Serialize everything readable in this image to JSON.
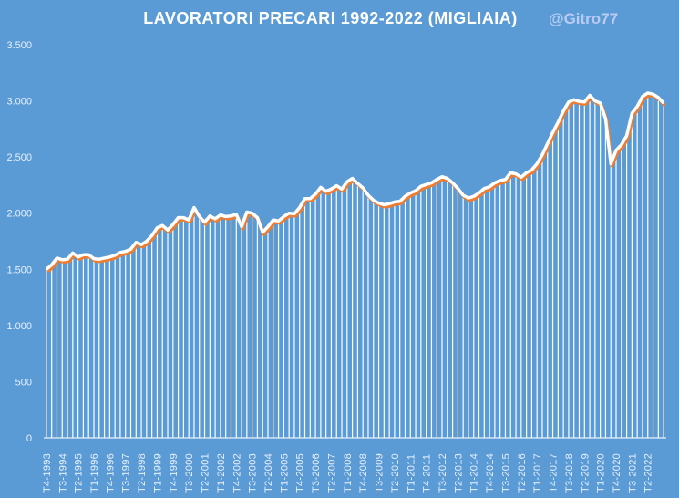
{
  "chart_data": {
    "type": "line",
    "title": "LAVORATORI  PRECARI 1992-2022  (MIGLIAIA)",
    "watermark": "@Gitro77",
    "xlabel": "",
    "ylabel": "",
    "ylim": [
      0,
      3500
    ],
    "y_ticks": [
      0,
      500,
      1000,
      1500,
      2000,
      2500,
      3000,
      3500
    ],
    "y_tick_labels": [
      "0",
      "500",
      "1.000",
      "1.500",
      "2.000",
      "2.500",
      "3.000",
      "3.500"
    ],
    "x_tick_every": 3,
    "x_tick_labels": [
      "T4-1993",
      "T3-1994",
      "T2-1995",
      "T1-1996",
      "T4-1996",
      "T3-1997",
      "T2-1998",
      "T1-1999",
      "T4-1999",
      "T3-2000",
      "T2-2001",
      "T1-2002",
      "T4-2002",
      "T3-2003",
      "T2-2004",
      "T1-2005",
      "T4-2005",
      "T3-2006",
      "T2-2007",
      "T1-2008",
      "T4-2008",
      "T3-2009",
      "T2-2010",
      "T1-2011",
      "T4-2011",
      "T3-2012",
      "T2-2013",
      "T1-2014",
      "T4-2014",
      "T3-2015",
      "T2-2016",
      "T1-2017",
      "T4-2017",
      "T3-2018",
      "T2-2019",
      "T1-2020",
      "T4-2020",
      "T3-2021",
      "T2-2022"
    ],
    "grid": false,
    "line_color": "#FFFFFF",
    "shadow_color": "#ED7D31",
    "background": "#5B9BD5",
    "series": [
      {
        "name": "Lavoratori precari",
        "values": [
          1500,
          1540,
          1600,
          1585,
          1590,
          1645,
          1610,
          1630,
          1630,
          1595,
          1590,
          1600,
          1610,
          1625,
          1650,
          1660,
          1680,
          1740,
          1720,
          1750,
          1800,
          1870,
          1890,
          1850,
          1900,
          1960,
          1960,
          1940,
          2050,
          1970,
          1920,
          1975,
          1950,
          1985,
          1970,
          1975,
          1990,
          1880,
          2010,
          2000,
          1960,
          1830,
          1880,
          1940,
          1930,
          1970,
          2000,
          1995,
          2050,
          2130,
          2130,
          2170,
          2230,
          2195,
          2215,
          2245,
          2215,
          2280,
          2310,
          2265,
          2225,
          2160,
          2115,
          2090,
          2075,
          2085,
          2100,
          2105,
          2150,
          2180,
          2200,
          2240,
          2255,
          2270,
          2300,
          2325,
          2310,
          2270,
          2220,
          2160,
          2135,
          2150,
          2180,
          2220,
          2235,
          2270,
          2290,
          2300,
          2360,
          2350,
          2320,
          2360,
          2385,
          2440,
          2520,
          2620,
          2720,
          2810,
          2910,
          2990,
          3010,
          2995,
          2990,
          3050,
          3000,
          2980,
          2840,
          2440,
          2560,
          2610,
          2690,
          2890,
          2950,
          3040,
          3070,
          3060,
          3030,
          2980
        ]
      }
    ]
  }
}
